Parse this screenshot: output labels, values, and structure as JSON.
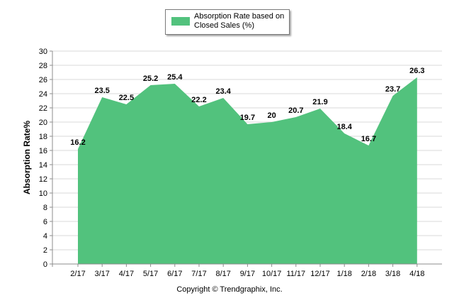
{
  "chart_data": {
    "type": "area",
    "categories": [
      "2/17",
      "3/17",
      "4/17",
      "5/17",
      "6/17",
      "7/17",
      "8/17",
      "9/17",
      "10/17",
      "11/17",
      "12/17",
      "1/18",
      "2/18",
      "3/18",
      "4/18"
    ],
    "series": [
      {
        "name": "Absorption Rate based on Closed Sales (%)",
        "values": [
          16.2,
          23.5,
          22.5,
          25.2,
          25.4,
          22.2,
          23.4,
          19.7,
          20,
          20.7,
          21.9,
          18.4,
          16.7,
          23.7,
          26.3
        ],
        "labels": [
          "16.2",
          "23.5",
          "22.5",
          "25.2",
          "25.4",
          "22.2",
          "23.4",
          "19.7",
          "20",
          "20.7",
          "21.9",
          "18.4",
          "16.7",
          "23.7",
          "26.3"
        ]
      }
    ],
    "ylabel": "Absorption Rate%",
    "ylim": [
      0,
      30
    ],
    "yticks": [
      "0",
      "2",
      "4",
      "6",
      "8",
      "10",
      "12",
      "14",
      "16",
      "18",
      "20",
      "22",
      "24",
      "26",
      "28",
      "30"
    ],
    "grid": true,
    "legend_position": "top-center",
    "colors": {
      "fill": "#52c27d",
      "grid": "#d9d9d9",
      "axis": "#8c8c8c"
    }
  },
  "footer": {
    "copyright": "Copyright © Trendgraphix, Inc."
  }
}
